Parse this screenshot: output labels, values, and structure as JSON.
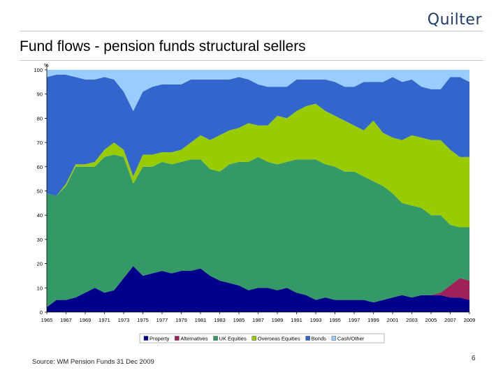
{
  "header": {
    "logo_text": "Quilter",
    "title": "Fund flows - pension funds structural sellers"
  },
  "footer": {
    "source": "Source: WM Pension Funds 31 Dec 2009",
    "page_number": "6"
  },
  "chart_data": {
    "type": "area",
    "stacked": true,
    "ylabel": "%",
    "ylim": [
      0,
      100
    ],
    "yticks": [
      "0",
      "10",
      "20",
      "30",
      "40",
      "50",
      "60",
      "70",
      "80",
      "90",
      "100"
    ],
    "xlim": [
      1965,
      2009
    ],
    "xticks": [
      "1965",
      "1967",
      "1969",
      "1971",
      "1973",
      "1975",
      "1977",
      "1979",
      "1981",
      "1983",
      "1985",
      "1987",
      "1989",
      "1991",
      "1993",
      "1995",
      "1997",
      "1999",
      "2001",
      "2003",
      "2005",
      "2007",
      "2009"
    ],
    "legend_position": "bottom",
    "grid": false,
    "x": [
      1965,
      1966,
      1967,
      1968,
      1969,
      1970,
      1971,
      1972,
      1973,
      1974,
      1975,
      1976,
      1977,
      1978,
      1979,
      1980,
      1981,
      1982,
      1983,
      1984,
      1985,
      1986,
      1987,
      1988,
      1989,
      1990,
      1991,
      1992,
      1993,
      1994,
      1995,
      1996,
      1997,
      1998,
      1999,
      2000,
      2001,
      2002,
      2003,
      2004,
      2005,
      2006,
      2007,
      2008,
      2009
    ],
    "series": [
      {
        "name": "Property",
        "color": "#00008b",
        "values": [
          2,
          5,
          5,
          6,
          8,
          10,
          8,
          9,
          14,
          19,
          15,
          16,
          17,
          16,
          17,
          17,
          18,
          15,
          13,
          12,
          11,
          9,
          10,
          10,
          9,
          10,
          8,
          7,
          5,
          6,
          5,
          5,
          5,
          5,
          4,
          5,
          6,
          7,
          6,
          7,
          7,
          7,
          6,
          6,
          5
        ]
      },
      {
        "name": "Alternatives",
        "color": "#a0205a",
        "values": [
          0,
          0,
          0,
          0,
          0,
          0,
          0,
          0,
          0,
          0,
          0,
          0,
          0,
          0,
          0,
          0,
          0,
          0,
          0,
          0,
          0,
          0,
          0,
          0,
          0,
          0,
          0,
          0,
          0,
          0,
          0,
          0,
          0,
          0,
          0,
          0,
          0,
          0,
          0,
          0,
          0,
          1,
          5,
          8,
          8
        ]
      },
      {
        "name": "UK Equities",
        "color": "#339966",
        "values": [
          47,
          43,
          47,
          54,
          52,
          50,
          56,
          56,
          50,
          34,
          45,
          44,
          45,
          45,
          45,
          46,
          45,
          44,
          45,
          49,
          51,
          53,
          54,
          52,
          52,
          52,
          55,
          56,
          58,
          55,
          55,
          53,
          53,
          51,
          50,
          47,
          43,
          38,
          38,
          36,
          33,
          32,
          25,
          21,
          22
        ]
      },
      {
        "name": "Overseas Equities",
        "color": "#99cc00",
        "values": [
          0,
          0,
          1,
          1,
          1,
          2,
          3,
          5,
          3,
          3,
          5,
          5,
          4,
          5,
          5,
          7,
          10,
          12,
          15,
          14,
          14,
          16,
          13,
          15,
          20,
          18,
          20,
          22,
          23,
          22,
          21,
          21,
          19,
          19,
          25,
          22,
          23,
          26,
          29,
          29,
          31,
          31,
          31,
          29,
          29
        ]
      },
      {
        "name": "Bonds",
        "color": "#3366cc",
        "values": [
          48,
          50,
          45,
          36,
          35,
          34,
          30,
          26,
          24,
          27,
          26,
          28,
          28,
          28,
          27,
          26,
          23,
          25,
          23,
          21,
          21,
          18,
          17,
          16,
          12,
          13,
          13,
          11,
          10,
          13,
          14,
          14,
          16,
          20,
          16,
          21,
          25,
          24,
          23,
          21,
          21,
          21,
          30,
          33,
          31
        ]
      },
      {
        "name": "Cash/Other",
        "color": "#99ccff",
        "values": [
          3,
          2,
          2,
          3,
          4,
          4,
          3,
          4,
          9,
          17,
          9,
          7,
          6,
          6,
          6,
          4,
          4,
          4,
          4,
          4,
          3,
          4,
          6,
          7,
          7,
          7,
          4,
          4,
          4,
          4,
          5,
          7,
          7,
          5,
          5,
          5,
          3,
          5,
          4,
          7,
          8,
          8,
          3,
          3,
          5
        ]
      }
    ]
  }
}
